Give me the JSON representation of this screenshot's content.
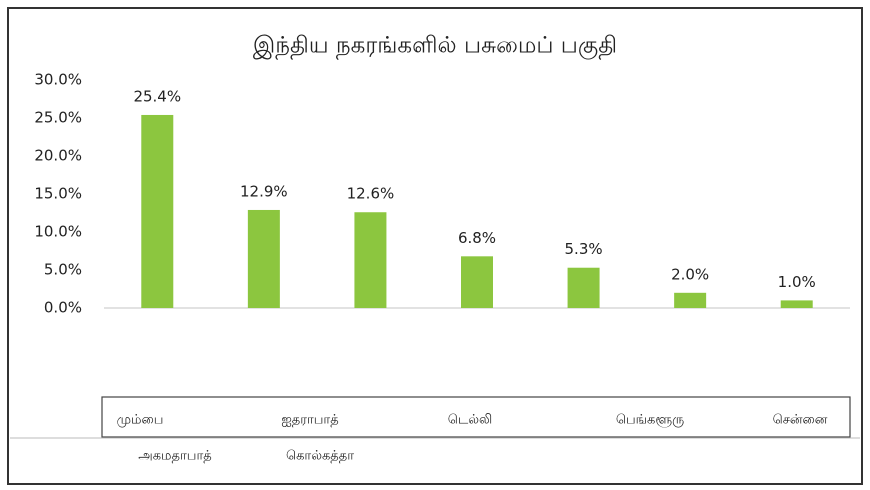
{
  "chart_data": {
    "type": "bar",
    "title": "இந்திய நகரங்களில் பசுமைப் பகுதி",
    "categories": [
      "மும்பை",
      "அகமதாபாத்",
      "ஐதராபாத்",
      "கொல்கத்தா",
      "டெல்லி",
      "பெங்களூரு",
      "சென்னை"
    ],
    "values": [
      25.4,
      12.9,
      12.6,
      6.8,
      5.3,
      2.0,
      1.0
    ],
    "value_labels": [
      "25.4%",
      "12.9%",
      "12.6%",
      "6.8%",
      "5.3%",
      "2.0%",
      "1.0%"
    ],
    "color": "#8cc63f",
    "ylim": [
      0,
      30
    ],
    "yticks": [
      {
        "value": 0,
        "label": "0.0%"
      },
      {
        "value": 5,
        "label": "5.0%"
      },
      {
        "value": 10,
        "label": "10.0%"
      },
      {
        "value": 15,
        "label": "15.0%"
      },
      {
        "value": 20,
        "label": "20.0%"
      },
      {
        "value": 25,
        "label": "25.0%"
      },
      {
        "value": 30,
        "label": "30.0%"
      }
    ]
  }
}
